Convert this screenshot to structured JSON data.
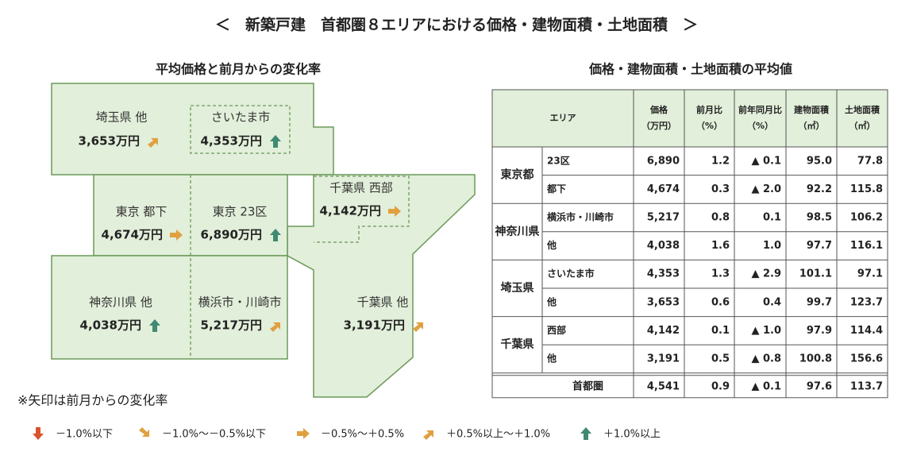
{
  "title": "＜　新築戸建　首都圏８エリアにおける価格・建物面積・土地面積　＞",
  "map": {
    "title": "平均価格と前月からの変化率",
    "areas": [
      {
        "name": "埼玉県 他",
        "price": "3,653万円"
      },
      {
        "name": "さいたま市",
        "price": "4,353万円"
      },
      {
        "name": "東京 都下",
        "price": "4,674万円"
      },
      {
        "name": "東京 23区",
        "price": "6,890万円"
      },
      {
        "name": "千葉県 西部",
        "price": "4,142万円"
      },
      {
        "name": "神奈川県 他",
        "price": "4,038万円"
      },
      {
        "name": "横浜市・川崎市",
        "price": "5,217万円"
      },
      {
        "name": "千葉県 他",
        "price": "3,191万円"
      }
    ]
  },
  "note": "※矢印は前月からの変化率",
  "legend": [
    "－1.0%以下",
    "－1.0%〜－0.5%以下",
    "－0.5%〜＋0.5%",
    "＋0.5%以上〜＋1.0%",
    "＋1.0%以上"
  ],
  "table": {
    "title": "価格・建物面積・土地面積の平均値",
    "header": [
      [
        "エリア"
      ],
      [
        "価格",
        "（万円）"
      ],
      [
        "前月比",
        "（%）"
      ],
      [
        "前年同月比",
        "（%）"
      ],
      [
        "建物面積",
        "（㎡）"
      ],
      [
        "土地面積",
        "（㎡）"
      ]
    ],
    "groups": [
      {
        "name": "東京都",
        "rows": [
          [
            "23区",
            "6,890",
            "1.2",
            "▲ 0.1",
            "95.0",
            "77.8"
          ],
          [
            "都下",
            "4,674",
            "0.3",
            "▲ 2.0",
            "92.2",
            "115.8"
          ]
        ]
      },
      {
        "name": "神奈川県",
        "rows": [
          [
            "横浜市・川崎市",
            "5,217",
            "0.8",
            "0.1",
            "98.5",
            "106.2"
          ],
          [
            "他",
            "4,038",
            "1.6",
            "1.0",
            "97.7",
            "116.1"
          ]
        ]
      },
      {
        "name": "埼玉県",
        "rows": [
          [
            "さいたま市",
            "4,353",
            "1.3",
            "▲ 2.9",
            "101.1",
            "97.1"
          ],
          [
            "他",
            "3,653",
            "0.6",
            "0.4",
            "99.7",
            "123.7"
          ]
        ]
      },
      {
        "name": "千葉県",
        "rows": [
          [
            "西部",
            "4,142",
            "0.1",
            "▲ 1.0",
            "97.9",
            "114.4"
          ],
          [
            "他",
            "3,191",
            "0.5",
            "▲ 0.8",
            "100.8",
            "156.6"
          ]
        ]
      }
    ],
    "total": [
      "首都圏",
      "4,541",
      "0.9",
      "▲ 0.1",
      "97.6",
      "113.7"
    ]
  }
}
